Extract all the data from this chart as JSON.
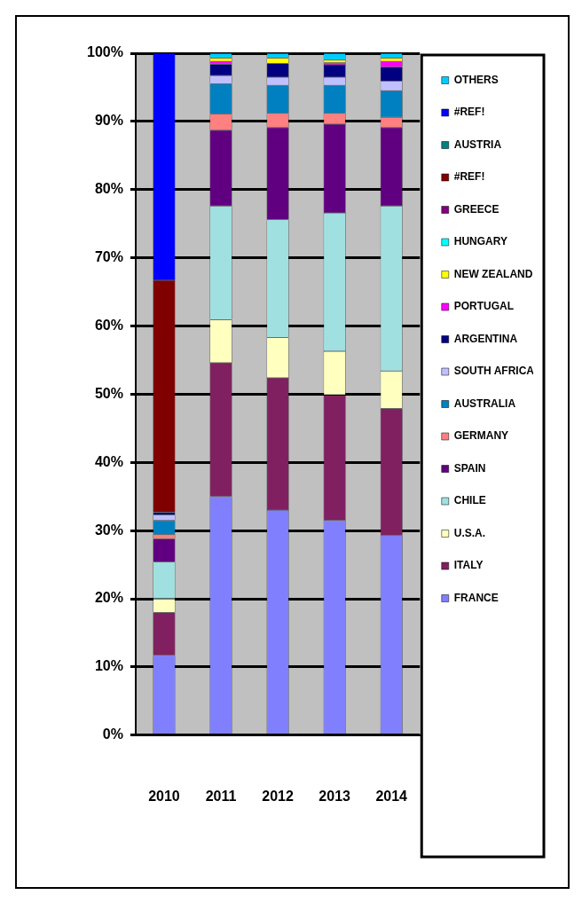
{
  "chart_data": {
    "type": "bar",
    "stacked": true,
    "categories": [
      "2010",
      "2011",
      "2012",
      "2013",
      "2014"
    ],
    "ylim": [
      0,
      100
    ],
    "yticks": [
      {
        "value": 0,
        "label": "0%"
      },
      {
        "value": 10,
        "label": "10%"
      },
      {
        "value": 20,
        "label": "20%"
      },
      {
        "value": 30,
        "label": "30%"
      },
      {
        "value": 40,
        "label": "40%"
      },
      {
        "value": 50,
        "label": "50%"
      },
      {
        "value": 60,
        "label": "60%"
      },
      {
        "value": 70,
        "label": "70%"
      },
      {
        "value": 80,
        "label": "80%"
      },
      {
        "value": 90,
        "label": "90%"
      },
      {
        "value": 100,
        "label": "100%"
      }
    ],
    "grid": "y",
    "legend": "right",
    "series": [
      {
        "name": "FRANCE",
        "color": "#8080ff",
        "values": [
          11.7,
          35.0,
          33.0,
          31.5,
          29.3
        ]
      },
      {
        "name": "ITALY",
        "color": "#802060",
        "values": [
          6.3,
          19.6,
          19.4,
          18.4,
          18.6
        ]
      },
      {
        "name": "U.S.A.",
        "color": "#ffffc0",
        "values": [
          2.0,
          6.3,
          5.9,
          6.4,
          5.5
        ]
      },
      {
        "name": "CHILE",
        "color": "#a0e0e0",
        "values": [
          5.4,
          16.7,
          17.3,
          20.3,
          24.2
        ]
      },
      {
        "name": "SPAIN",
        "color": "#600080",
        "values": [
          3.4,
          11.1,
          13.5,
          13.0,
          11.5
        ]
      },
      {
        "name": "GERMANY",
        "color": "#ff8080",
        "values": [
          0.6,
          2.4,
          2.1,
          1.6,
          1.5
        ]
      },
      {
        "name": "AUSTRALIA",
        "color": "#0080c0",
        "values": [
          2.1,
          4.4,
          4.1,
          4.1,
          3.9
        ]
      },
      {
        "name": "SOUTH AFRICA",
        "color": "#c0c0ff",
        "values": [
          0.8,
          1.2,
          1.2,
          1.2,
          1.4
        ]
      },
      {
        "name": "ARGENTINA",
        "color": "#000080",
        "values": [
          0.4,
          1.7,
          2.0,
          1.8,
          2.1
        ]
      },
      {
        "name": "PORTUGAL",
        "color": "#ff00ff",
        "values": [
          null,
          0.4,
          null,
          0.3,
          0.8
        ]
      },
      {
        "name": "NEW ZEALAND",
        "color": "#ffff00",
        "values": [
          null,
          0.5,
          0.8,
          0.4,
          0.5
        ]
      },
      {
        "name": "HUNGARY",
        "color": "#00ffff",
        "values": [
          null,
          null,
          null,
          null,
          null
        ]
      },
      {
        "name": "GREECE",
        "color": "#800080",
        "values": [
          null,
          null,
          null,
          null,
          null
        ]
      },
      {
        "name": "#REF!",
        "color": "#800000",
        "values": [
          34.0,
          null,
          null,
          null,
          null
        ]
      },
      {
        "name": "AUSTRIA",
        "color": "#008080",
        "values": [
          null,
          null,
          null,
          null,
          null
        ]
      },
      {
        "name": "#REF!",
        "color": "#0000ff",
        "values": [
          33.3,
          null,
          null,
          null,
          null
        ]
      },
      {
        "name": "OTHERS",
        "color": "#00ccff",
        "values": [
          null,
          0.7,
          0.7,
          1.0,
          0.7
        ]
      }
    ]
  }
}
